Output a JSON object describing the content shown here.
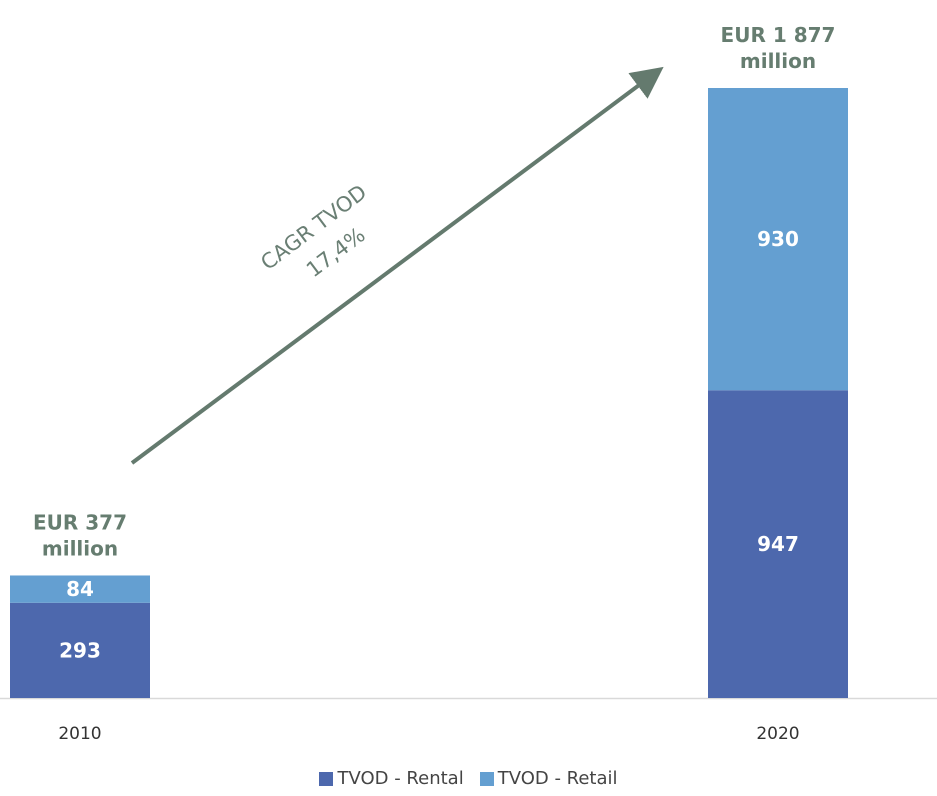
{
  "chart_data": {
    "type": "bar",
    "stacked": true,
    "categories": [
      "2010",
      "2020"
    ],
    "series": [
      {
        "name": "TVOD - Rental",
        "values": [
          293,
          947
        ],
        "color": "#4d68ad"
      },
      {
        "name": "TVOD - Retail",
        "values": [
          84,
          930
        ],
        "color": "#649fd1"
      }
    ],
    "totals": [
      {
        "line1": "EUR 377",
        "line2": "million"
      },
      {
        "line1": "EUR 1 877",
        "line2": "million"
      }
    ],
    "annotation": {
      "line1": "CAGR TVOD",
      "line2": "17,4%"
    },
    "legend_position": "bottom",
    "grid": false,
    "colors": {
      "total_label": "#667d70",
      "arrow": "#647a6e",
      "annotation_text": "#6a7f74",
      "value_label": "#ffffff",
      "axis_line": "#d9d9d9",
      "tick_label": "#333333"
    }
  }
}
